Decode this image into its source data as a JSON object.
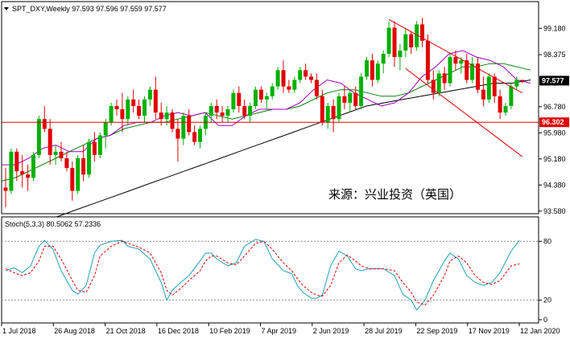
{
  "chart_data": [
    {
      "type": "candlestick",
      "title": "SPT_DXY,Weekly  97.593 97.596 97.559 97.577",
      "symbol": "SPT_DXY",
      "timeframe": "Weekly",
      "ohlc_readout": [
        "97.593",
        "97.596",
        "97.559",
        "97.577"
      ],
      "watermark": "来源：兴业投资（英国）",
      "ylim": [
        93.5,
        100.0
      ],
      "y_ticks": [
        "99.180",
        "98.375",
        "97.577",
        "96.780",
        "95.980",
        "95.180",
        "94.380",
        "93.580"
      ],
      "x_ticks": [
        "1 Jul 2018",
        "26 Aug 2018",
        "21 Oct 2018",
        "16 Dec 2018",
        "10 Feb 2019",
        "7 Apr 2019",
        "2 Jun 2019",
        "28 Jul 2019",
        "22 Sep 2019",
        "17 Nov 2019",
        "12 Jan 2020"
      ],
      "last_price_label": "97.577",
      "support_label": "96.302",
      "support_level": 96.302,
      "colors": {
        "up": "#00b000",
        "down": "#e00000",
        "ma_fast": "#a000c0",
        "ma_mid": "#008000",
        "ma_slow": "#000000",
        "channel": "#e00000",
        "support": "#e00000"
      },
      "candles": [
        [
          94.3,
          94.9,
          93.7,
          94.2
        ],
        [
          94.2,
          95.5,
          94.1,
          95.4
        ],
        [
          95.4,
          95.5,
          94.5,
          94.8
        ],
        [
          94.8,
          95.3,
          94.3,
          94.7
        ],
        [
          94.7,
          95.0,
          94.2,
          94.6
        ],
        [
          94.6,
          95.4,
          94.5,
          95.3
        ],
        [
          95.3,
          96.5,
          95.2,
          96.4
        ],
        [
          96.4,
          96.8,
          96.0,
          96.1
        ],
        [
          96.1,
          96.4,
          95.0,
          95.3
        ],
        [
          95.3,
          95.6,
          95.0,
          95.4
        ],
        [
          95.4,
          95.7,
          95.1,
          95.2
        ],
        [
          95.2,
          95.4,
          94.8,
          94.9
        ],
        [
          94.9,
          95.1,
          93.9,
          94.2
        ],
        [
          94.2,
          95.3,
          94.1,
          95.2
        ],
        [
          95.2,
          95.6,
          94.5,
          94.7
        ],
        [
          94.7,
          95.8,
          94.6,
          95.7
        ],
        [
          95.7,
          96.0,
          95.1,
          95.3
        ],
        [
          95.3,
          96.0,
          95.2,
          95.9
        ],
        [
          95.9,
          96.4,
          95.5,
          96.3
        ],
        [
          96.3,
          96.9,
          96.2,
          96.8
        ],
        [
          96.8,
          97.0,
          96.5,
          96.7
        ],
        [
          96.7,
          97.2,
          96.0,
          96.4
        ],
        [
          96.4,
          97.1,
          96.2,
          97.0
        ],
        [
          97.0,
          97.3,
          96.6,
          96.8
        ],
        [
          96.8,
          97.0,
          96.4,
          96.5
        ],
        [
          96.5,
          97.1,
          96.3,
          97.0
        ],
        [
          97.0,
          97.4,
          96.8,
          97.3
        ],
        [
          97.3,
          97.7,
          96.4,
          96.6
        ],
        [
          96.6,
          96.9,
          96.2,
          96.4
        ],
        [
          96.4,
          96.8,
          96.2,
          96.6
        ],
        [
          96.6,
          96.7,
          96.0,
          96.1
        ],
        [
          96.1,
          96.4,
          95.1,
          95.8
        ],
        [
          95.8,
          96.6,
          95.6,
          96.5
        ],
        [
          96.5,
          96.7,
          95.9,
          96.0
        ],
        [
          96.0,
          96.2,
          95.6,
          95.7
        ],
        [
          95.7,
          96.2,
          95.5,
          96.1
        ],
        [
          96.1,
          96.6,
          95.9,
          96.5
        ],
        [
          96.5,
          96.9,
          96.3,
          96.8
        ],
        [
          96.8,
          97.0,
          96.4,
          96.6
        ],
        [
          96.6,
          96.8,
          96.3,
          96.5
        ],
        [
          96.5,
          96.8,
          96.3,
          96.7
        ],
        [
          96.7,
          97.3,
          96.6,
          97.2
        ],
        [
          97.2,
          97.4,
          96.6,
          96.8
        ],
        [
          96.8,
          97.0,
          96.4,
          96.5
        ],
        [
          96.5,
          96.9,
          96.3,
          96.8
        ],
        [
          96.8,
          97.4,
          96.7,
          97.3
        ],
        [
          97.3,
          97.4,
          96.9,
          97.0
        ],
        [
          97.0,
          97.2,
          96.7,
          97.1
        ],
        [
          97.1,
          97.5,
          97.0,
          97.4
        ],
        [
          97.4,
          98.0,
          97.3,
          97.9
        ],
        [
          97.9,
          98.2,
          97.2,
          97.4
        ],
        [
          97.4,
          97.6,
          97.2,
          97.3
        ],
        [
          97.3,
          97.7,
          97.2,
          97.6
        ],
        [
          97.6,
          98.0,
          97.5,
          97.9
        ],
        [
          97.9,
          98.1,
          97.6,
          97.7
        ],
        [
          97.7,
          97.8,
          97.5,
          97.6
        ],
        [
          97.6,
          97.8,
          97.0,
          97.1
        ],
        [
          97.1,
          97.3,
          96.2,
          96.3
        ],
        [
          96.3,
          96.9,
          96.1,
          96.8
        ],
        [
          96.8,
          97.0,
          96.0,
          96.4
        ],
        [
          96.4,
          97.2,
          96.3,
          97.1
        ],
        [
          97.1,
          97.4,
          96.7,
          96.9
        ],
        [
          96.9,
          97.3,
          96.6,
          97.2
        ],
        [
          97.2,
          97.4,
          96.7,
          96.8
        ],
        [
          96.8,
          97.8,
          96.7,
          97.7
        ],
        [
          97.7,
          98.3,
          97.6,
          98.2
        ],
        [
          98.2,
          98.4,
          97.4,
          97.6
        ],
        [
          97.6,
          98.2,
          97.5,
          98.1
        ],
        [
          98.1,
          98.5,
          97.8,
          98.4
        ],
        [
          98.4,
          99.4,
          98.3,
          99.2
        ],
        [
          99.2,
          99.4,
          98.0,
          98.3
        ],
        [
          98.3,
          98.7,
          97.9,
          98.5
        ],
        [
          98.5,
          99.2,
          98.3,
          99.0
        ],
        [
          99.0,
          99.1,
          98.4,
          98.6
        ],
        [
          98.6,
          99.4,
          98.5,
          99.3
        ],
        [
          99.3,
          99.5,
          98.6,
          98.8
        ],
        [
          98.8,
          99.0,
          97.5,
          97.6
        ],
        [
          97.6,
          97.9,
          97.0,
          97.2
        ],
        [
          97.2,
          97.9,
          97.1,
          97.8
        ],
        [
          97.8,
          98.0,
          97.3,
          97.5
        ],
        [
          97.5,
          98.4,
          97.4,
          98.3
        ],
        [
          98.3,
          98.5,
          97.9,
          98.1
        ],
        [
          98.1,
          98.3,
          97.8,
          98.2
        ],
        [
          98.2,
          98.4,
          97.5,
          97.6
        ],
        [
          97.6,
          98.3,
          97.5,
          98.1
        ],
        [
          98.1,
          98.3,
          97.2,
          97.3
        ],
        [
          97.3,
          97.7,
          96.8,
          97.0
        ],
        [
          97.0,
          97.8,
          96.9,
          97.7
        ],
        [
          97.7,
          97.8,
          96.9,
          97.1
        ],
        [
          97.1,
          97.3,
          96.4,
          96.6
        ],
        [
          96.6,
          96.9,
          96.5,
          96.8
        ],
        [
          96.8,
          97.5,
          96.7,
          97.4
        ],
        [
          97.4,
          97.7,
          97.3,
          97.6
        ],
        [
          97.6,
          97.6,
          97.5,
          97.58
        ]
      ],
      "ma_fast": [
        95.0,
        95.0,
        95.2,
        95.5,
        95.6,
        95.4,
        95.4,
        95.8,
        95.9,
        96.2,
        96.3,
        96.3,
        96.5,
        96.6,
        96.5,
        96.6,
        96.2,
        96.2,
        96.5,
        96.7,
        96.7,
        96.7,
        96.9,
        97.3,
        97.6,
        97.5,
        97.2,
        97.0,
        96.8,
        96.9,
        97.2,
        97.7,
        98.0,
        98.4,
        98.5,
        98.3,
        98.2,
        98.0,
        97.6,
        97.5
      ],
      "ma_mid": [
        94.5,
        94.6,
        94.8,
        95.0,
        95.2,
        95.4,
        95.6,
        95.8,
        95.9,
        96.1,
        96.2,
        96.3,
        96.3,
        96.4,
        96.5,
        96.6,
        96.5,
        96.4,
        96.5,
        96.6,
        96.7,
        96.7,
        96.8,
        97.0,
        97.2,
        97.3,
        97.3,
        97.2,
        97.1,
        97.1,
        97.2,
        97.4,
        97.6,
        97.8,
        98.0,
        98.0,
        98.1,
        98.1,
        98.0,
        97.9
      ],
      "ma_slow": [
        92.8,
        93.0,
        93.2,
        93.4,
        93.6,
        93.8,
        94.0,
        94.2,
        94.4,
        94.6,
        94.8,
        95.0,
        95.2,
        95.4,
        95.6,
        95.8,
        96.0,
        96.2,
        96.4,
        96.6,
        96.8,
        96.9,
        97.0,
        97.1,
        97.2,
        97.3,
        97.4,
        97.5,
        97.5,
        97.6
      ],
      "channel_upper": [
        [
          69,
          99.45
        ],
        [
          93,
          97.2
        ]
      ],
      "channel_lower": [
        [
          72,
          97.95
        ],
        [
          93,
          95.25
        ]
      ]
    },
    {
      "type": "line",
      "title": "Stoch(5,3,3) 80.5062 57.2336",
      "indicator": "Stoch(5,3,3)",
      "readout": [
        "80.5062",
        "57.2336"
      ],
      "ylim": [
        0,
        100
      ],
      "y_ticks": [
        "80",
        "20",
        "0"
      ],
      "levels": [
        20,
        80
      ],
      "colors": {
        "main": "#20a0b8",
        "signal": "#e00000",
        "level": "#909090"
      },
      "main_line": [
        [
          0,
          50
        ],
        [
          1.5,
          53
        ],
        [
          3,
          48
        ],
        [
          4.5,
          55
        ],
        [
          6,
          75
        ],
        [
          7,
          81
        ],
        [
          8.5,
          72
        ],
        [
          10,
          50
        ],
        [
          12,
          30
        ],
        [
          13,
          26
        ],
        [
          14.5,
          35
        ],
        [
          16,
          68
        ],
        [
          17,
          76
        ],
        [
          19,
          80
        ],
        [
          21,
          81
        ],
        [
          22,
          75
        ],
        [
          24,
          72
        ],
        [
          26,
          62
        ],
        [
          28,
          38
        ],
        [
          29,
          20
        ],
        [
          30,
          30
        ],
        [
          31.5,
          38
        ],
        [
          33,
          45
        ],
        [
          35,
          60
        ],
        [
          36,
          68
        ],
        [
          37,
          68
        ],
        [
          38,
          62
        ],
        [
          40,
          55
        ],
        [
          41.5,
          58
        ],
        [
          43,
          75
        ],
        [
          45,
          82
        ],
        [
          46.5,
          80
        ],
        [
          48,
          62
        ],
        [
          50,
          50
        ],
        [
          51.5,
          47
        ],
        [
          52.5,
          35
        ],
        [
          53.5,
          28
        ],
        [
          55,
          22
        ],
        [
          56,
          22
        ],
        [
          57,
          25
        ],
        [
          58.5,
          55
        ],
        [
          60,
          70
        ],
        [
          61.5,
          65
        ],
        [
          63,
          52
        ],
        [
          64,
          50
        ],
        [
          65.5,
          52
        ],
        [
          66.5,
          52
        ],
        [
          68,
          52
        ],
        [
          70,
          45
        ],
        [
          71.5,
          26
        ],
        [
          73,
          20
        ],
        [
          74,
          10
        ],
        [
          75.5,
          20
        ],
        [
          77,
          40
        ],
        [
          79,
          60
        ],
        [
          80,
          68
        ],
        [
          81.5,
          62
        ],
        [
          83,
          45
        ],
        [
          84.5,
          38
        ],
        [
          86,
          35
        ],
        [
          87.5,
          38
        ],
        [
          89,
          48
        ],
        [
          91,
          70
        ],
        [
          92.5,
          81
        ]
      ],
      "signal_line": [
        [
          0,
          52
        ],
        [
          1.5,
          48
        ],
        [
          3,
          45
        ],
        [
          4.5,
          48
        ],
        [
          6,
          60
        ],
        [
          7,
          75
        ],
        [
          8.5,
          75
        ],
        [
          10,
          62
        ],
        [
          12,
          40
        ],
        [
          13,
          30
        ],
        [
          14.5,
          28
        ],
        [
          16,
          45
        ],
        [
          17,
          65
        ],
        [
          19,
          75
        ],
        [
          21,
          80
        ],
        [
          22,
          78
        ],
        [
          24,
          74
        ],
        [
          26,
          68
        ],
        [
          28,
          48
        ],
        [
          29,
          30
        ],
        [
          30,
          25
        ],
        [
          31.5,
          32
        ],
        [
          33,
          40
        ],
        [
          35,
          50
        ],
        [
          36,
          60
        ],
        [
          37,
          65
        ],
        [
          38,
          65
        ],
        [
          40,
          58
        ],
        [
          41.5,
          56
        ],
        [
          43,
          65
        ],
        [
          45,
          78
        ],
        [
          46.5,
          80
        ],
        [
          48,
          72
        ],
        [
          50,
          58
        ],
        [
          51.5,
          50
        ],
        [
          52.5,
          42
        ],
        [
          53.5,
          35
        ],
        [
          55,
          28
        ],
        [
          56,
          25
        ],
        [
          57,
          24
        ],
        [
          58.5,
          35
        ],
        [
          60,
          58
        ],
        [
          61.5,
          66
        ],
        [
          63,
          60
        ],
        [
          64,
          55
        ],
        [
          65.5,
          52
        ],
        [
          66.5,
          52
        ],
        [
          68,
          52
        ],
        [
          70,
          50
        ],
        [
          71.5,
          38
        ],
        [
          73,
          28
        ],
        [
          74,
          18
        ],
        [
          75.5,
          15
        ],
        [
          77,
          25
        ],
        [
          79,
          45
        ],
        [
          80,
          60
        ],
        [
          81.5,
          65
        ],
        [
          83,
          58
        ],
        [
          84.5,
          45
        ],
        [
          86,
          38
        ],
        [
          87.5,
          36
        ],
        [
          89,
          40
        ],
        [
          91,
          55
        ],
        [
          92.5,
          57
        ]
      ]
    }
  ]
}
